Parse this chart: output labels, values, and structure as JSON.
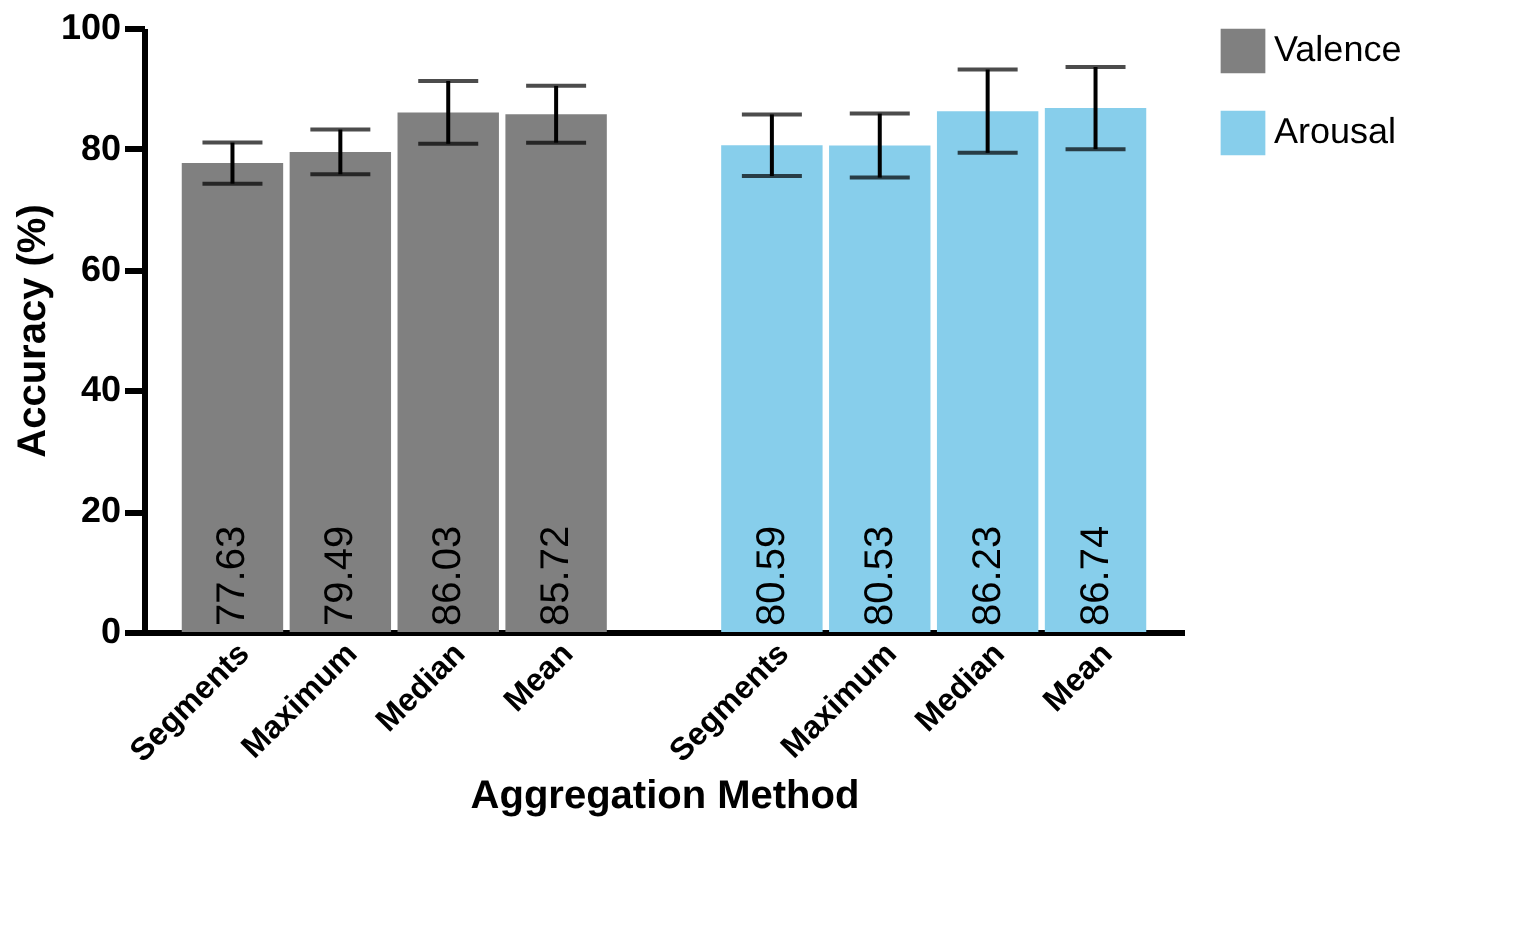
{
  "chart_data": {
    "type": "bar",
    "xlabel": "Aggregation Method",
    "ylabel": "Accuracy (%)",
    "categories": [
      "Segments",
      "Maximum",
      "Median",
      "Mean",
      null,
      "Segments",
      "Maximum",
      "Median",
      "Mean"
    ],
    "series": [
      {
        "name": "Valence",
        "color": "#808080",
        "values": [
          77.63,
          79.49,
          86.03,
          85.72,
          null,
          null,
          null,
          null,
          null
        ],
        "errors": [
          3.4,
          3.7,
          5.2,
          4.7,
          null,
          null,
          null,
          null,
          null
        ]
      },
      {
        "name": "Arousal",
        "color": "#87ceeb",
        "values": [
          null,
          null,
          null,
          null,
          null,
          80.59,
          80.53,
          86.23,
          86.74
        ],
        "errors": [
          null,
          null,
          null,
          null,
          null,
          5.1,
          5.3,
          6.9,
          6.8
        ]
      }
    ],
    "ylim": [
      0,
      100
    ],
    "yticks": [
      0,
      20,
      40,
      60,
      80,
      100
    ],
    "grid": false,
    "legend": "top right",
    "data_labels": true
  }
}
